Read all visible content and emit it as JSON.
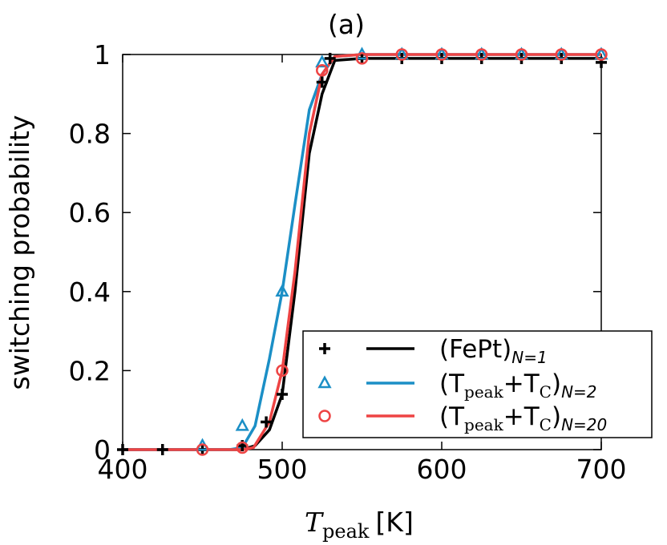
{
  "chart_data": {
    "type": "line",
    "title": "(a)",
    "xlabel_main": "T",
    "xlabel_sub": "peak",
    "xlabel_unit": "[K]",
    "ylabel": "switching probability",
    "xlim": [
      400,
      700
    ],
    "ylim": [
      0,
      1
    ],
    "xticks": [
      400,
      500,
      600,
      700
    ],
    "xtick_labels": [
      "400",
      "500",
      "600",
      "700"
    ],
    "yticks": [
      0,
      0.2,
      0.4,
      0.6,
      0.8,
      1
    ],
    "ytick_labels": [
      "0",
      "0.2",
      "0.4",
      "0.6",
      "0.8",
      "1"
    ],
    "grid": false,
    "legend_position": "lower-right",
    "series": [
      {
        "legend_main": "(FePt)",
        "legend_sub": "N=1",
        "color": "#000000",
        "marker": "plus",
        "points": {
          "x": [
            400,
            425,
            450,
            475,
            490,
            500,
            525,
            530,
            550,
            575,
            600,
            625,
            650,
            675,
            700
          ],
          "y": [
            0,
            0,
            0,
            0.01,
            0.07,
            0.14,
            0.93,
            0.99,
            0.99,
            0.99,
            0.99,
            0.99,
            0.99,
            0.99,
            0.98
          ]
        },
        "line": {
          "x": [
            400,
            475,
            483,
            492,
            500,
            508,
            517,
            525,
            533,
            550,
            700
          ],
          "y": [
            0,
            0,
            0.01,
            0.05,
            0.14,
            0.4,
            0.75,
            0.9,
            0.985,
            0.99,
            0.99
          ]
        }
      },
      {
        "legend_main": "(T",
        "legend_sub1": "peak",
        "legend_mid": "+T",
        "legend_sub2": "C",
        "legend_end": ")",
        "legend_n": "N=2",
        "color": "#1b8fc6",
        "marker": "triangle",
        "points": {
          "x": [
            450,
            475,
            500,
            525,
            550,
            575,
            600,
            625,
            650,
            675,
            700
          ],
          "y": [
            0.01,
            0.06,
            0.4,
            0.98,
            1.0,
            1.0,
            1.0,
            1.0,
            1.0,
            1.0,
            1.0
          ]
        },
        "line": {
          "x": [
            400,
            467,
            475,
            483,
            492,
            500,
            508,
            517,
            525,
            533,
            550,
            700
          ],
          "y": [
            0,
            0,
            0.005,
            0.06,
            0.23,
            0.4,
            0.62,
            0.86,
            0.95,
            0.995,
            1.0,
            1.0
          ]
        }
      },
      {
        "legend_main": "(T",
        "legend_sub1": "peak",
        "legend_mid": "+T",
        "legend_sub2": "C",
        "legend_end": ")",
        "legend_n": "N=20",
        "color": "#ee4444",
        "marker": "circle",
        "points": {
          "x": [
            450,
            475,
            500,
            525,
            550,
            575,
            600,
            625,
            650,
            675,
            700
          ],
          "y": [
            0.0,
            0.005,
            0.2,
            0.96,
            0.99,
            1.0,
            1.0,
            1.0,
            1.0,
            1.0,
            1.0
          ]
        },
        "line": {
          "x": [
            400,
            475,
            482,
            492,
            500,
            508,
            517,
            525,
            533,
            550,
            700
          ],
          "y": [
            0,
            0,
            0.005,
            0.07,
            0.2,
            0.45,
            0.8,
            0.95,
            0.995,
            1.0,
            1.0
          ]
        }
      }
    ]
  }
}
